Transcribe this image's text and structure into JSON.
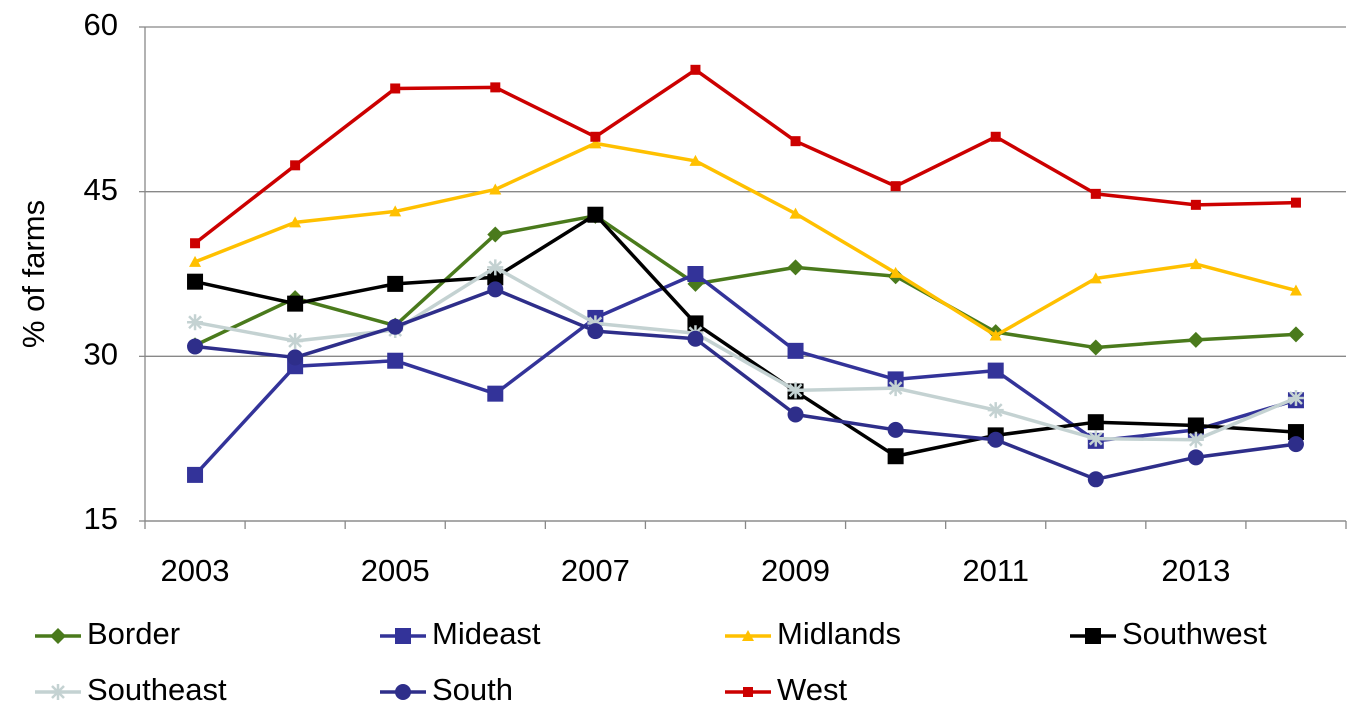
{
  "chart_data": {
    "type": "line",
    "y_label": "% of farms",
    "categories": [
      "2003",
      null,
      "2005",
      null,
      "2007",
      null,
      "2009",
      null,
      "2011",
      null,
      "2013",
      null
    ],
    "ylim": [
      15,
      60
    ],
    "yticks": [
      15,
      30,
      45,
      60
    ],
    "grid": true,
    "series": [
      {
        "name": "Border",
        "color": "#4a7a1c",
        "marker": "diamond",
        "values": [
          31.0,
          35.3,
          32.8,
          41.1,
          42.8,
          36.6,
          38.1,
          37.3,
          32.2,
          30.8,
          31.5,
          32.0
        ]
      },
      {
        "name": "Mideast",
        "color": "#333399",
        "marker": "square",
        "values": [
          19.2,
          29.1,
          29.6,
          26.6,
          33.5,
          37.5,
          30.5,
          27.9,
          28.7,
          22.3,
          23.3,
          26.0
        ]
      },
      {
        "name": "Midlands",
        "color": "#ffc000",
        "marker": "triangle",
        "values": [
          38.6,
          42.2,
          43.2,
          45.2,
          49.4,
          47.8,
          43.0,
          37.6,
          31.9,
          37.1,
          38.4,
          36.0
        ]
      },
      {
        "name": "Southwest",
        "color": "#000000",
        "marker": "square",
        "values": [
          36.8,
          34.8,
          36.6,
          37.2,
          42.9,
          33.0,
          26.8,
          20.9,
          22.8,
          24.0,
          23.7,
          23.1
        ]
      },
      {
        "name": "Southeast",
        "color": "#c4d2d2",
        "marker": "asterisk",
        "values": [
          33.1,
          31.4,
          32.4,
          38.1,
          33.0,
          32.1,
          26.9,
          27.1,
          25.1,
          22.5,
          22.4,
          26.2
        ]
      },
      {
        "name": "South",
        "color": "#2e2e8a",
        "marker": "circle",
        "values": [
          30.9,
          29.9,
          32.7,
          36.1,
          32.3,
          31.6,
          24.7,
          23.3,
          22.4,
          18.8,
          20.8,
          22.0
        ]
      },
      {
        "name": "West",
        "color": "#cc0000",
        "marker": "small-square",
        "values": [
          40.3,
          47.4,
          54.4,
          54.5,
          50.0,
          56.1,
          49.6,
          45.5,
          50.0,
          44.8,
          43.8,
          44.0
        ]
      }
    ]
  }
}
